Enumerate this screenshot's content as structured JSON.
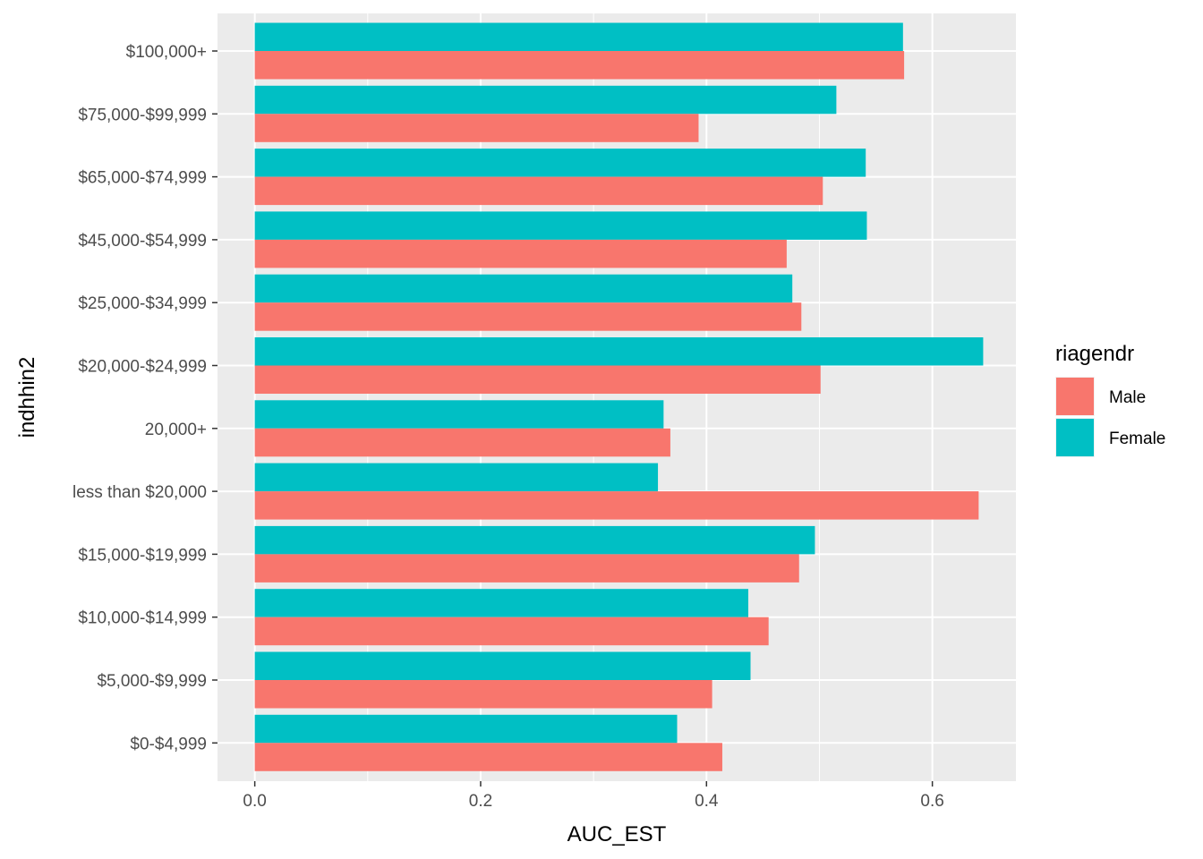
{
  "chart_data": {
    "type": "bar",
    "orientation": "horizontal",
    "xlabel": "AUC_EST",
    "ylabel": "indhhin2",
    "xlim": [
      -0.033,
      0.674
    ],
    "xticks": [
      0.0,
      0.2,
      0.4,
      0.6
    ],
    "xtick_labels": [
      "0.0",
      "0.2",
      "0.4",
      "0.6"
    ],
    "grid": true,
    "categories": [
      "$100,000+",
      "$75,000-$99,999",
      "$65,000-$74,999",
      "$45,000-$54,999",
      "$25,000-$34,999",
      "$20,000-$24,999",
      "20,000+",
      "less than $20,000",
      "$15,000-$19,999",
      "$10,000-$14,999",
      "$5,000-$9,999",
      "$0-$4,999"
    ],
    "series": [
      {
        "name": "Male",
        "color": "#F8766D",
        "values": [
          0.575,
          0.393,
          0.503,
          0.471,
          0.484,
          0.501,
          0.368,
          0.641,
          0.482,
          0.455,
          0.405,
          0.414
        ]
      },
      {
        "name": "Female",
        "color": "#00BFC4",
        "values": [
          0.574,
          0.515,
          0.541,
          0.542,
          0.476,
          0.645,
          0.362,
          0.357,
          0.496,
          0.437,
          0.439,
          0.374
        ]
      }
    ],
    "legend": {
      "title": "riagendr",
      "placement": "right",
      "entries": [
        "Male",
        "Female"
      ]
    }
  }
}
